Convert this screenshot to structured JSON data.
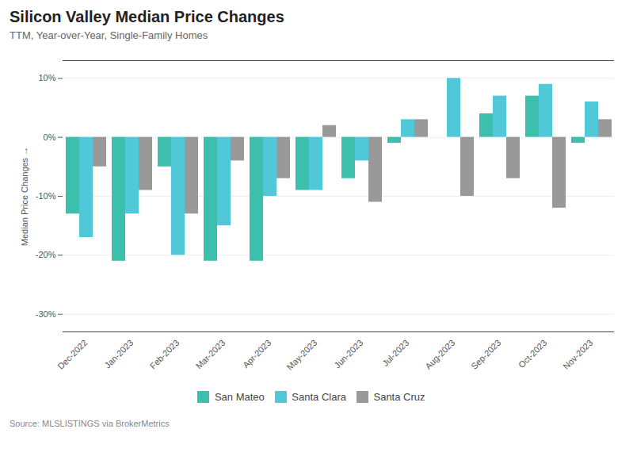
{
  "chart_data": {
    "type": "bar",
    "title": "Silicon Valley Median Price Changes",
    "subtitle": "TTM, Year-over-Year, Single-Family Homes",
    "ylabel": "Median Price Changes",
    "source": "Source:  MLSLISTINGS via BrokerMetrics",
    "categories": [
      "Dec-2022",
      "Jan-2023",
      "Feb-2023",
      "Mar-2023",
      "Apr-2023",
      "May-2023",
      "Jun-2023",
      "Jul-2023",
      "Aug-2023",
      "Sep-2023",
      "Oct-2023",
      "Nov-2023"
    ],
    "series": [
      {
        "name": "San Mateo",
        "color": "#3cbfad",
        "values": [
          -13,
          -21,
          -5,
          -21,
          -21,
          -9,
          -7,
          -1,
          0,
          4,
          7,
          -1
        ]
      },
      {
        "name": "Santa Clara",
        "color": "#50c8d8",
        "values": [
          -17,
          -13,
          -20,
          -15,
          -10,
          -9,
          -4,
          3,
          10,
          7,
          9,
          6
        ]
      },
      {
        "name": "Santa Cruz",
        "color": "#999999",
        "values": [
          -5,
          -9,
          -13,
          -4,
          -7,
          2,
          -11,
          3,
          -10,
          -7,
          -12,
          3
        ]
      }
    ],
    "ylim": [
      -33,
      13
    ],
    "yticks": [
      {
        "value": -30,
        "label": "-30%"
      },
      {
        "value": -20,
        "label": "-20%"
      },
      {
        "value": -10,
        "label": "-10%"
      },
      {
        "value": 0,
        "label": "0%"
      },
      {
        "value": 10,
        "label": "10%"
      }
    ],
    "grid": true,
    "legend": "bottom"
  }
}
